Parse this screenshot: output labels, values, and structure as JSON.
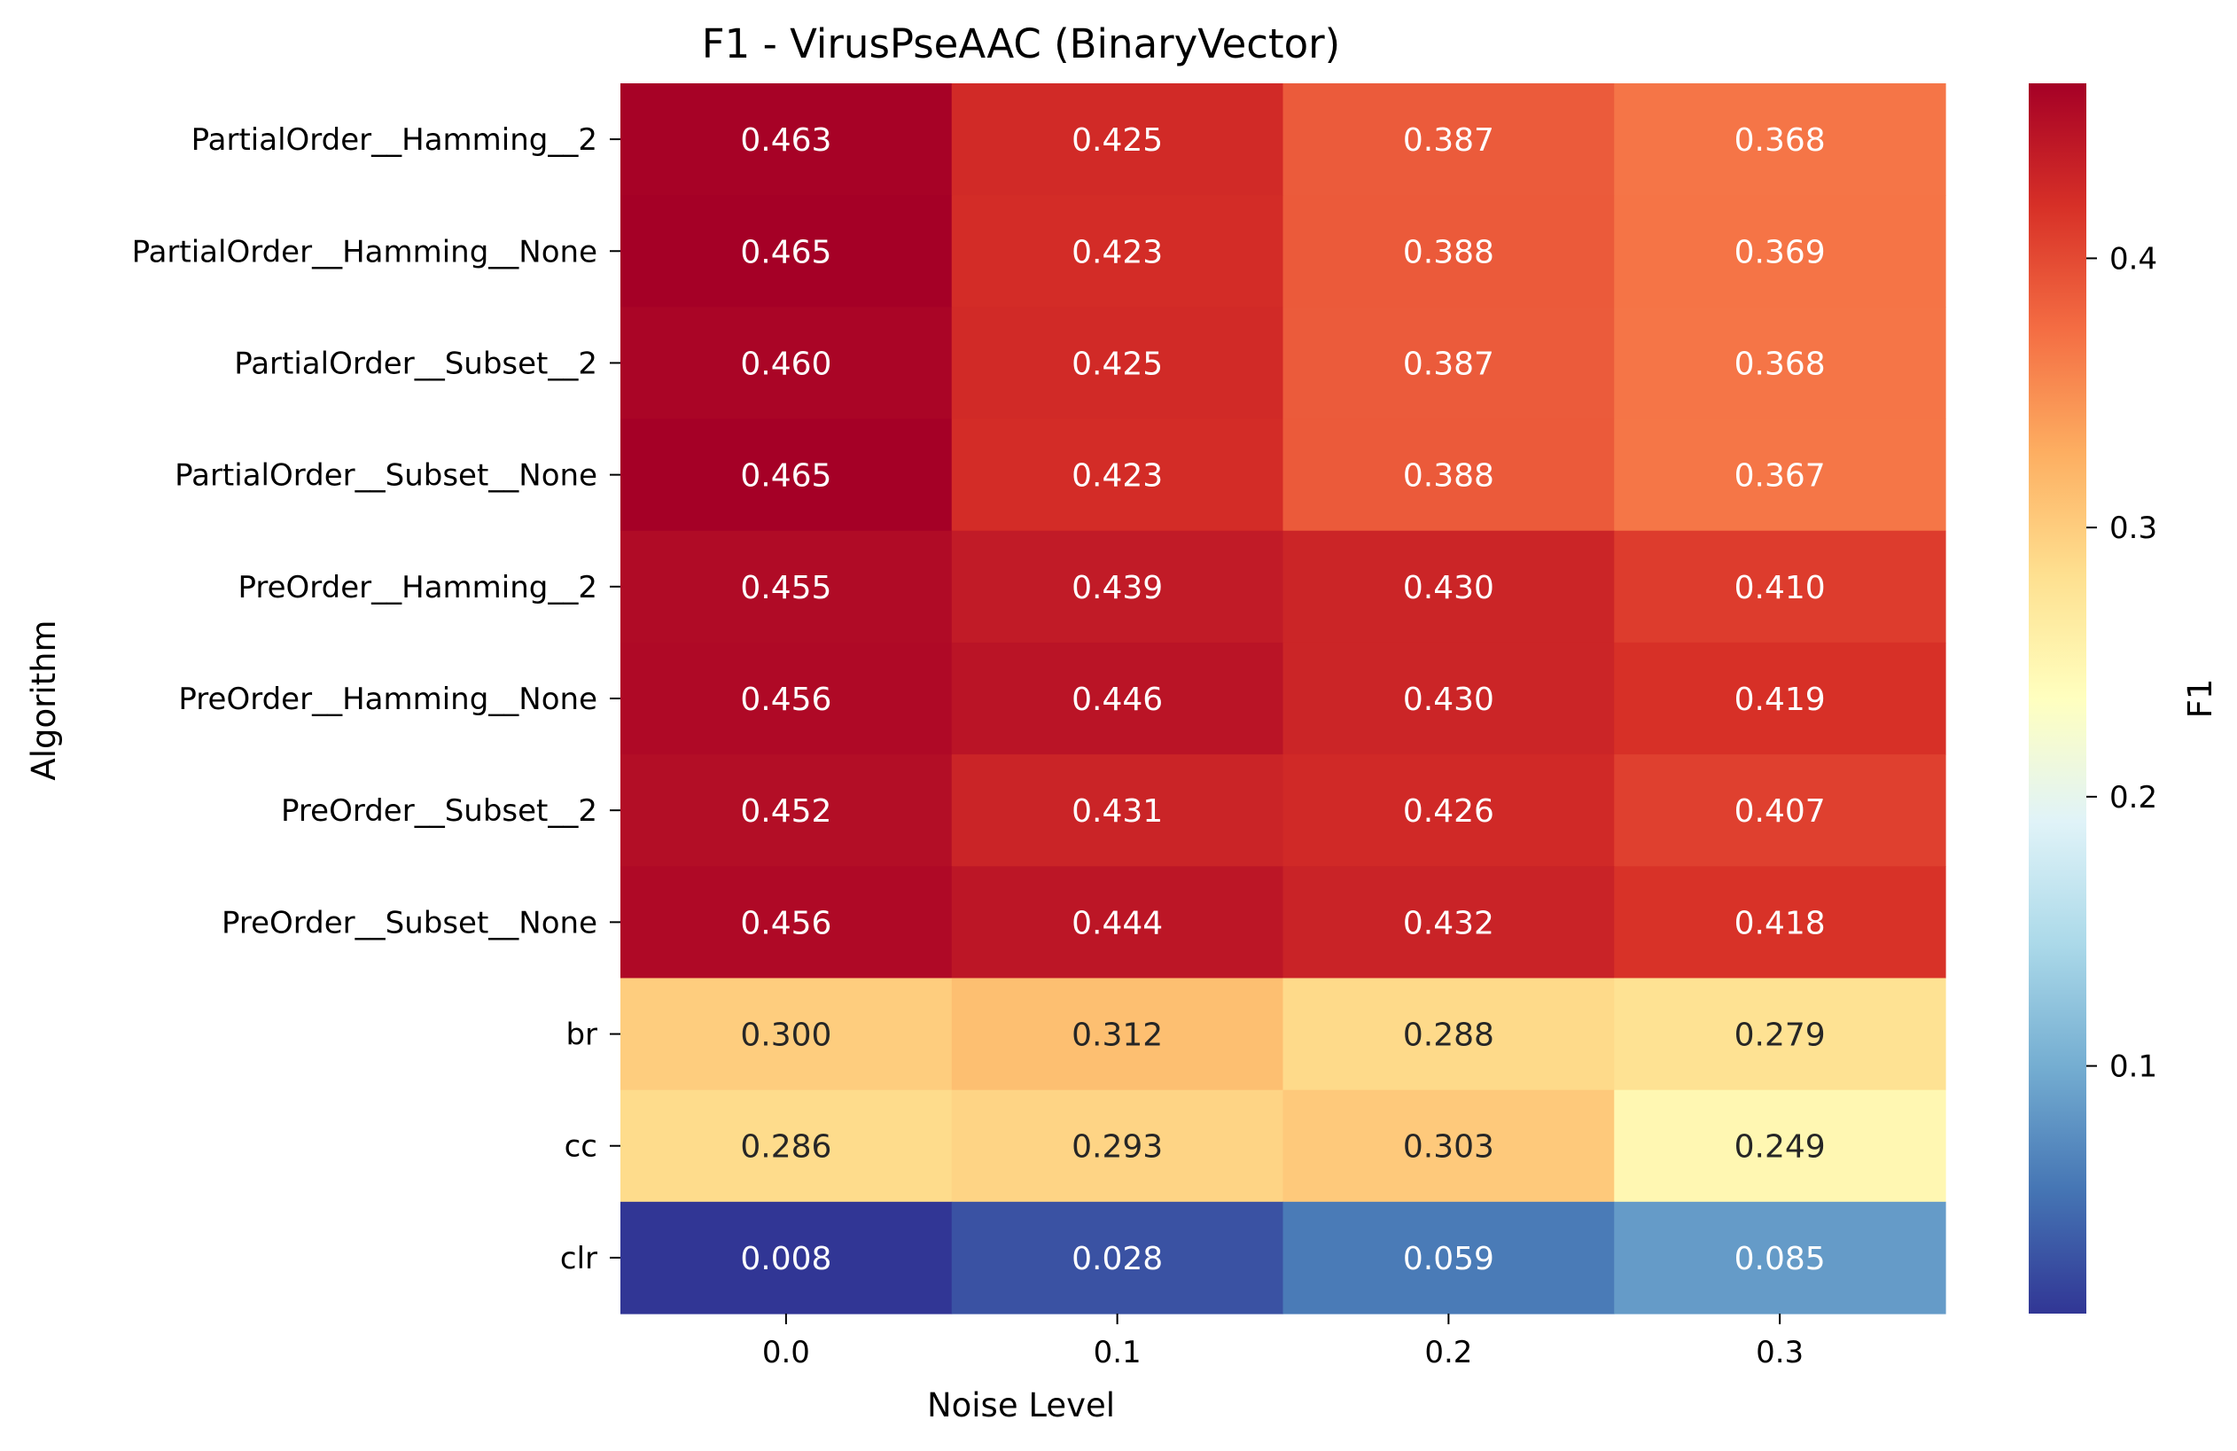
{
  "chart_data": {
    "type": "heatmap",
    "title": "F1 - VirusPseAAC (BinaryVector)",
    "xlabel": "Noise Level",
    "ylabel": "Algorithm",
    "x_categories": [
      "0.0",
      "0.1",
      "0.2",
      "0.3"
    ],
    "y_categories": [
      "PartialOrder__Hamming__2",
      "PartialOrder__Hamming__None",
      "PartialOrder__Subset__2",
      "PartialOrder__Subset__None",
      "PreOrder__Hamming__2",
      "PreOrder__Hamming__None",
      "PreOrder__Subset__2",
      "PreOrder__Subset__None",
      "br",
      "cc",
      "clr"
    ],
    "values": [
      [
        0.463,
        0.425,
        0.387,
        0.368
      ],
      [
        0.465,
        0.423,
        0.388,
        0.369
      ],
      [
        0.46,
        0.425,
        0.387,
        0.368
      ],
      [
        0.465,
        0.423,
        0.388,
        0.367
      ],
      [
        0.455,
        0.439,
        0.43,
        0.41
      ],
      [
        0.456,
        0.446,
        0.43,
        0.419
      ],
      [
        0.452,
        0.431,
        0.426,
        0.407
      ],
      [
        0.456,
        0.444,
        0.432,
        0.418
      ],
      [
        0.3,
        0.312,
        0.288,
        0.279
      ],
      [
        0.286,
        0.293,
        0.303,
        0.249
      ],
      [
        0.008,
        0.028,
        0.059,
        0.085
      ]
    ],
    "colormap": "RdYlBu_r",
    "vmin": 0.008,
    "vmax": 0.465,
    "colorbar": {
      "label": "F1",
      "ticks": [
        0.1,
        0.2,
        0.3,
        0.4
      ],
      "tick_labels": [
        "0.1",
        "0.2",
        "0.3",
        "0.4"
      ]
    },
    "annotation_format": "0.3f",
    "colors": [
      "#313695",
      "#4575b4",
      "#74add1",
      "#abd9e9",
      "#e0f3f8",
      "#ffffbf",
      "#fee090",
      "#fdae61",
      "#f46d43",
      "#d73027",
      "#a50026"
    ]
  }
}
